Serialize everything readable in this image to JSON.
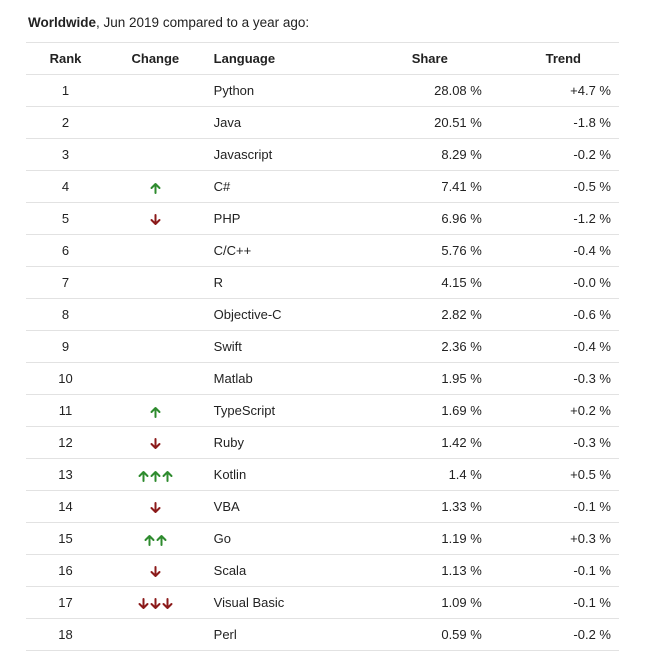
{
  "caption": {
    "bold": "Worldwide",
    "rest": ", Jun 2019 compared to a year ago:"
  },
  "headers": {
    "rank": "Rank",
    "change": "Change",
    "language": "Language",
    "share": "Share",
    "trend": "Trend"
  },
  "colors": {
    "up": "#2e8b2e",
    "down": "#8b1a1a"
  },
  "rows": [
    {
      "rank": "1",
      "change": {
        "dir": "none",
        "count": 0
      },
      "language": "Python",
      "share": "28.08 %",
      "trend": "+4.7 %"
    },
    {
      "rank": "2",
      "change": {
        "dir": "none",
        "count": 0
      },
      "language": "Java",
      "share": "20.51 %",
      "trend": "-1.8 %"
    },
    {
      "rank": "3",
      "change": {
        "dir": "none",
        "count": 0
      },
      "language": "Javascript",
      "share": "8.29 %",
      "trend": "-0.2 %"
    },
    {
      "rank": "4",
      "change": {
        "dir": "up",
        "count": 1
      },
      "language": "C#",
      "share": "7.41 %",
      "trend": "-0.5 %"
    },
    {
      "rank": "5",
      "change": {
        "dir": "down",
        "count": 1
      },
      "language": "PHP",
      "share": "6.96 %",
      "trend": "-1.2 %"
    },
    {
      "rank": "6",
      "change": {
        "dir": "none",
        "count": 0
      },
      "language": "C/C++",
      "share": "5.76 %",
      "trend": "-0.4 %"
    },
    {
      "rank": "7",
      "change": {
        "dir": "none",
        "count": 0
      },
      "language": "R",
      "share": "4.15 %",
      "trend": "-0.0 %"
    },
    {
      "rank": "8",
      "change": {
        "dir": "none",
        "count": 0
      },
      "language": "Objective-C",
      "share": "2.82 %",
      "trend": "-0.6 %"
    },
    {
      "rank": "9",
      "change": {
        "dir": "none",
        "count": 0
      },
      "language": "Swift",
      "share": "2.36 %",
      "trend": "-0.4 %"
    },
    {
      "rank": "10",
      "change": {
        "dir": "none",
        "count": 0
      },
      "language": "Matlab",
      "share": "1.95 %",
      "trend": "-0.3 %"
    },
    {
      "rank": "11",
      "change": {
        "dir": "up",
        "count": 1
      },
      "language": "TypeScript",
      "share": "1.69 %",
      "trend": "+0.2 %"
    },
    {
      "rank": "12",
      "change": {
        "dir": "down",
        "count": 1
      },
      "language": "Ruby",
      "share": "1.42 %",
      "trend": "-0.3 %"
    },
    {
      "rank": "13",
      "change": {
        "dir": "up",
        "count": 3
      },
      "language": "Kotlin",
      "share": "1.4 %",
      "trend": "+0.5 %"
    },
    {
      "rank": "14",
      "change": {
        "dir": "down",
        "count": 1
      },
      "language": "VBA",
      "share": "1.33 %",
      "trend": "-0.1 %"
    },
    {
      "rank": "15",
      "change": {
        "dir": "up",
        "count": 2
      },
      "language": "Go",
      "share": "1.19 %",
      "trend": "+0.3 %"
    },
    {
      "rank": "16",
      "change": {
        "dir": "down",
        "count": 1
      },
      "language": "Scala",
      "share": "1.13 %",
      "trend": "-0.1 %"
    },
    {
      "rank": "17",
      "change": {
        "dir": "down",
        "count": 3
      },
      "language": "Visual Basic",
      "share": "1.09 %",
      "trend": "-0.1 %"
    },
    {
      "rank": "18",
      "change": {
        "dir": "none",
        "count": 0
      },
      "language": "Perl",
      "share": "0.59 %",
      "trend": "-0.2 %"
    }
  ]
}
